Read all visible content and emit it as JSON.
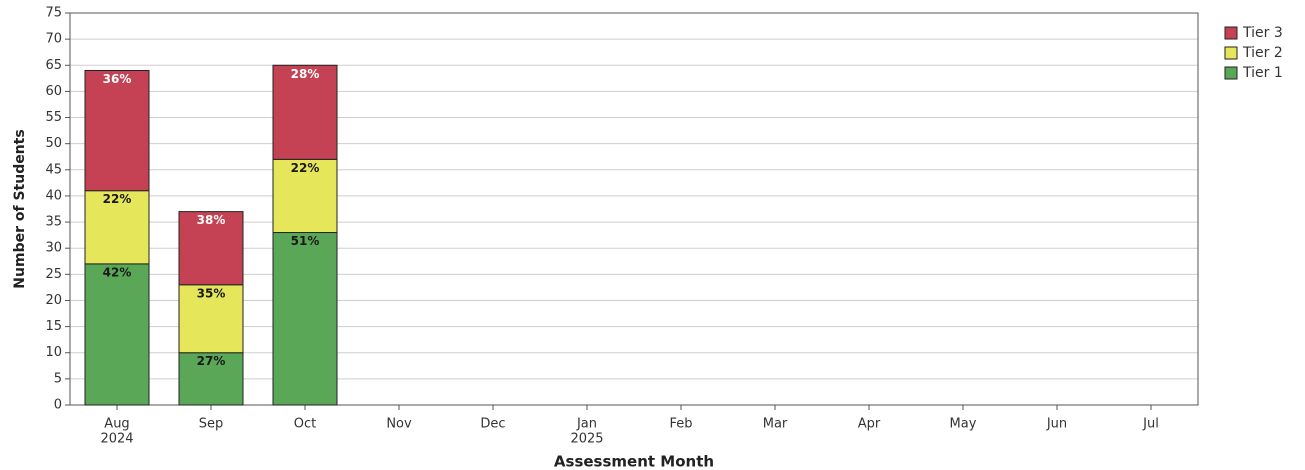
{
  "chart_data": {
    "type": "stacked-bar",
    "x_label": "Assessment Month",
    "y_label": "Number of Students",
    "categories": [
      "Aug",
      "Sep",
      "Oct",
      "Nov",
      "Dec",
      "Jan",
      "Feb",
      "Mar",
      "Apr",
      "May",
      "Jun",
      "Jul"
    ],
    "category_years": [
      "2024",
      null,
      null,
      null,
      null,
      "2025",
      null,
      null,
      null,
      null,
      null,
      null
    ],
    "series": [
      {
        "name": "Tier 1",
        "color": "#5aa857",
        "label_color": "#1a1a1a",
        "values": [
          27,
          10,
          33,
          null,
          null,
          null,
          null,
          null,
          null,
          null,
          null,
          null
        ],
        "percent_labels": [
          "42%",
          "27%",
          "51%",
          null,
          null,
          null,
          null,
          null,
          null,
          null,
          null,
          null
        ]
      },
      {
        "name": "Tier 2",
        "color": "#e6e65a",
        "label_color": "#1a1a1a",
        "values": [
          14,
          13,
          14,
          null,
          null,
          null,
          null,
          null,
          null,
          null,
          null,
          null
        ],
        "percent_labels": [
          "22%",
          "35%",
          "22%",
          null,
          null,
          null,
          null,
          null,
          null,
          null,
          null,
          null
        ]
      },
      {
        "name": "Tier 3",
        "color": "#c44253",
        "label_color": "#ffffff",
        "values": [
          23,
          14,
          18,
          null,
          null,
          null,
          null,
          null,
          null,
          null,
          null,
          null
        ],
        "percent_labels": [
          "36%",
          "38%",
          "28%",
          null,
          null,
          null,
          null,
          null,
          null,
          null,
          null,
          null
        ]
      }
    ],
    "ylim": [
      0,
      75
    ],
    "yticks": [
      0,
      5,
      10,
      15,
      20,
      25,
      30,
      35,
      40,
      45,
      50,
      55,
      60,
      65,
      70,
      75
    ],
    "grid": true,
    "legend": "top-right"
  }
}
